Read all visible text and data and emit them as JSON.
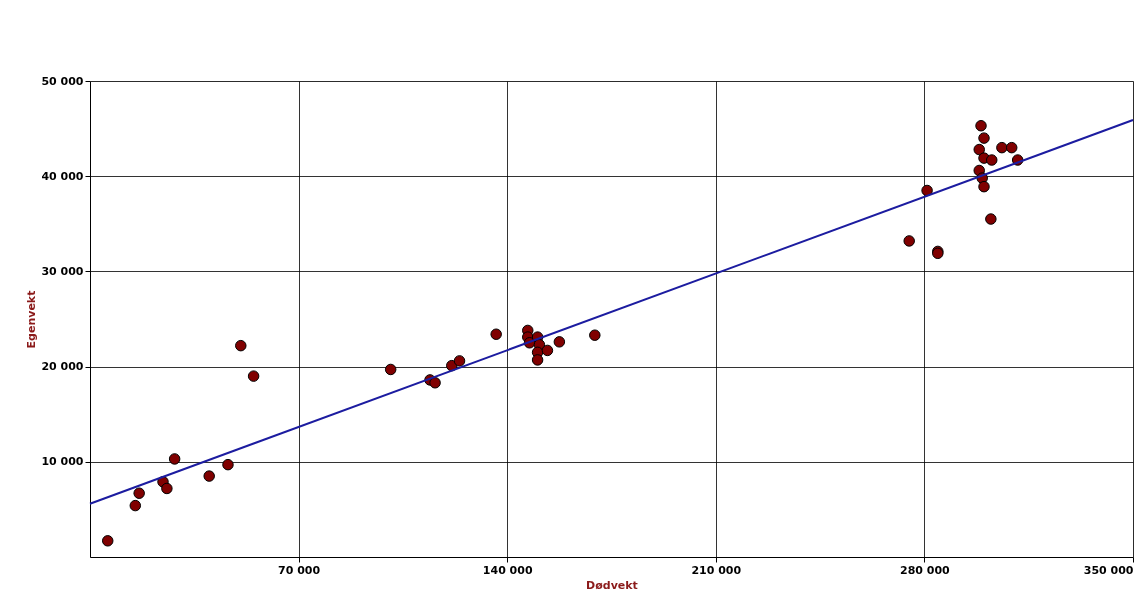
{
  "chart_data": {
    "type": "scatter",
    "xlabel": "Dødvekt",
    "ylabel": "Egenvekt",
    "xlim": [
      0,
      350000
    ],
    "ylim": [
      0,
      50000
    ],
    "xticks": [
      {
        "value": 70000,
        "label": "70 000"
      },
      {
        "value": 140000,
        "label": "140 000"
      },
      {
        "value": 210000,
        "label": "210 000"
      },
      {
        "value": 280000,
        "label": "280 000"
      },
      {
        "value": 350000,
        "label": "350 000"
      }
    ],
    "yticks": [
      {
        "value": 10000,
        "label": "10 000"
      },
      {
        "value": 20000,
        "label": "20 000"
      },
      {
        "value": 30000,
        "label": "30 000"
      },
      {
        "value": 40000,
        "label": "40 000"
      },
      {
        "value": 50000,
        "label": "50 000"
      }
    ],
    "grid": true,
    "series": [
      {
        "type": "scatter",
        "marker": "circle",
        "color": "#800000",
        "x": [
          5950,
          15200,
          16500,
          24500,
          25800,
          28400,
          40000,
          46300,
          50600,
          54900,
          100900,
          114100,
          115800,
          121400,
          124000,
          136300,
          146900,
          146900,
          147500,
          150200,
          150800,
          150200,
          150200,
          153500,
          157500,
          169400,
          274900,
          280900,
          284500,
          284500,
          299000,
          300000,
          298400,
          300000,
          302600,
          298400,
          299400,
          300000,
          302300,
          306000,
          309300,
          311300
        ],
        "values": [
          1700,
          5400,
          6700,
          7900,
          7200,
          10300,
          8500,
          9700,
          22200,
          19000,
          19700,
          18600,
          18300,
          20100,
          20600,
          23400,
          23800,
          23100,
          22500,
          23100,
          22300,
          21500,
          20700,
          21700,
          22600,
          23300,
          33200,
          38500,
          32100,
          31900,
          45300,
          44000,
          42800,
          41900,
          41700,
          40600,
          39800,
          38900,
          35500,
          43000,
          43000,
          41700
        ]
      },
      {
        "type": "line",
        "marker": "none",
        "color": "#1c1ca0",
        "x": [
          0,
          350000
        ],
        "values": [
          5600,
          45900
        ]
      }
    ]
  }
}
